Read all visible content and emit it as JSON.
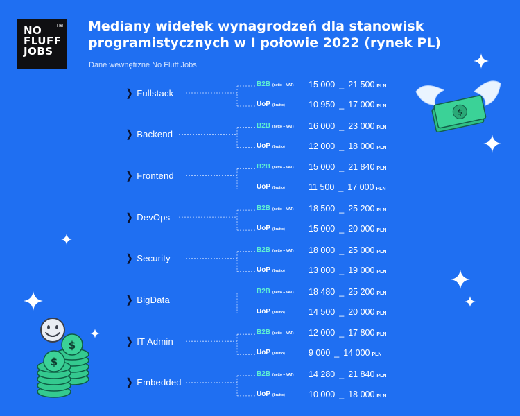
{
  "logo": {
    "lines": [
      "NO",
      "FLUFF",
      "JOBS"
    ],
    "trademark": "TM"
  },
  "title": "Mediany widełek wynagrodzeń dla stanowisk programistycznych w I połowie 2022 (rynek PL)",
  "subtitle": "Dane wewnętrzne No Fluff Jobs",
  "colors": {
    "background": "#1f6ff2",
    "b2b_label": "#5ff0d2",
    "logo_bg": "#0f0f12",
    "chevron": "#0b1330"
  },
  "icons": [
    "chevron-right-icon",
    "sparkle-icon",
    "flying-money-icon",
    "coin-stack-icon",
    "smiley-icon"
  ],
  "chart_data": {
    "type": "table",
    "contract_types": [
      {
        "label": "B2B",
        "note": "(netto + VAT)"
      },
      {
        "label": "UoP",
        "note": "(brutto)"
      }
    ],
    "range_separator": "_",
    "unit": "PLN",
    "categories": [
      "Fullstack",
      "Backend",
      "Frontend",
      "DevOps",
      "Security",
      "BigData",
      "IT Admin",
      "Embedded"
    ],
    "rows": [
      {
        "category": "Fullstack",
        "b2b": {
          "min": "15 000",
          "max": "21 500"
        },
        "uop": {
          "min": "10 950",
          "max": "17 000"
        }
      },
      {
        "category": "Backend",
        "b2b": {
          "min": "16 000",
          "max": "23 000"
        },
        "uop": {
          "min": "12 000",
          "max": "18 000"
        }
      },
      {
        "category": "Frontend",
        "b2b": {
          "min": "15 000",
          "max": "21 840"
        },
        "uop": {
          "min": "11 500",
          "max": "17 000"
        }
      },
      {
        "category": "DevOps",
        "b2b": {
          "min": "18 500",
          "max": "25 200"
        },
        "uop": {
          "min": "15 000",
          "max": "20 000"
        }
      },
      {
        "category": "Security",
        "b2b": {
          "min": "18 000",
          "max": "25 000"
        },
        "uop": {
          "min": "13 000",
          "max": "19 000"
        }
      },
      {
        "category": "BigData",
        "b2b": {
          "min": "18 480",
          "max": "25 200"
        },
        "uop": {
          "min": "14 500",
          "max": "20 000"
        }
      },
      {
        "category": "IT Admin",
        "b2b": {
          "min": "12 000",
          "max": "17 800"
        },
        "uop": {
          "min": "9 000",
          "max": "14 000"
        }
      },
      {
        "category": "Embedded",
        "b2b": {
          "min": "14 280",
          "max": "21 840"
        },
        "uop": {
          "min": "10 000",
          "max": "18 000"
        }
      }
    ]
  }
}
